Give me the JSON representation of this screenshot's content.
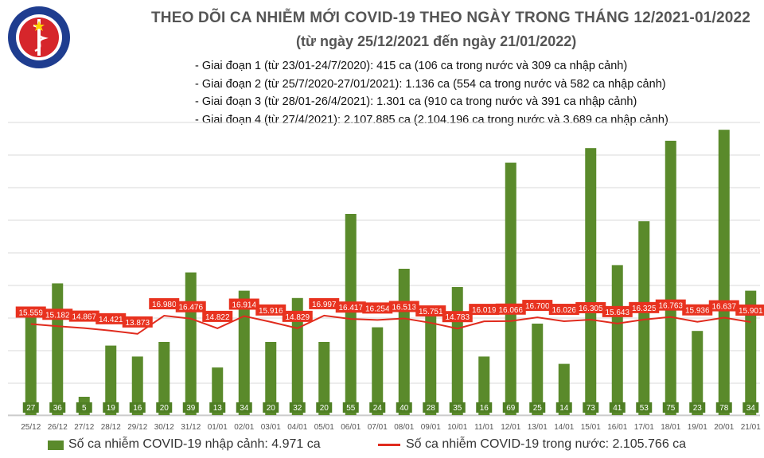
{
  "header": {
    "logo_text_top": "BỘ Y TẾ",
    "logo_text_bottom": "MINISTRY OF HEALTH",
    "title": "THEO DÕI CA NHIỄM MỚI COVID-19 THEO NGÀY TRONG THÁNG 12/2021-01/2022",
    "subtitle": "(từ ngày 25/12/2021 đến ngày 21/01/2022)"
  },
  "notes": [
    "- Giai đoạn 1 (từ 23/01-24/7/2020): 415 ca (106 ca trong nước và 309 ca nhập cảnh)",
    "- Giai đoạn 2 (từ 25/7/2020-27/01/2021): 1.136 ca (554 ca trong nước và 582 ca nhập cảnh)",
    "- Giai đoạn 3 (từ 28/01-26/4/2021): 1.301 ca (910 ca trong nước và 391 ca nhập cảnh)",
    "- Giai đoạn 4 (từ 27/4/2021): 2.107.885 ca (2.104.196 ca trong nước và 3.689 ca nhập cảnh)"
  ],
  "colors": {
    "bar": "#5a8a2b",
    "bar_label_bg": "#4f7f24",
    "line": "#e02b1e",
    "line_label_bg": "#e8321f",
    "title": "#555555"
  },
  "chart_data": {
    "type": "bar+line",
    "categories": [
      "25/12",
      "26/12",
      "27/12",
      "28/12",
      "29/12",
      "30/12",
      "31/12",
      "01/01",
      "02/01",
      "03/01",
      "04/01",
      "05/01",
      "06/01",
      "07/01",
      "08/01",
      "09/01",
      "10/01",
      "11/01",
      "12/01",
      "13/01",
      "14/01",
      "15/01",
      "16/01",
      "17/01",
      "18/01",
      "19/01",
      "20/01",
      "21/01"
    ],
    "series": [
      {
        "name": "Số ca nhiễm COVID-19 nhập cảnh: 4.971 ca",
        "kind": "bar",
        "values": [
          27,
          36,
          5,
          19,
          16,
          20,
          39,
          13,
          34,
          20,
          32,
          20,
          55,
          24,
          40,
          28,
          35,
          16,
          69,
          25,
          14,
          73,
          41,
          53,
          75,
          23,
          78,
          34
        ]
      },
      {
        "name": "Số ca nhiễm COVID-19 trong nước: 2.105.766 ca",
        "kind": "line",
        "values": [
          15559,
          15182,
          14867,
          14421,
          13873,
          16980,
          16476,
          14822,
          16914,
          15916,
          14829,
          16997,
          16417,
          16254,
          16513,
          15751,
          14783,
          16019,
          16066,
          16700,
          16026,
          16305,
          15643,
          16325,
          16763,
          15936,
          16637,
          15901
        ],
        "labels": [
          "15.559",
          "15.182",
          "14.867",
          "14.421",
          "13.873",
          "16.980",
          "16.476",
          "14.822",
          "16.914",
          "15.916",
          "14.829",
          "16.997",
          "16.417",
          "16.254",
          "16.513",
          "15.751",
          "14.783",
          "16.019",
          "16.066",
          "16.700",
          "16.026",
          "16.305",
          "15.643",
          "16.325",
          "16.763",
          "15.936",
          "16.637",
          "15.901"
        ]
      }
    ],
    "bar_axis": {
      "min": 0,
      "max": 80
    },
    "line_axis": {
      "min": 0,
      "max": 50000
    },
    "grid": true,
    "legend_position": "bottom"
  }
}
